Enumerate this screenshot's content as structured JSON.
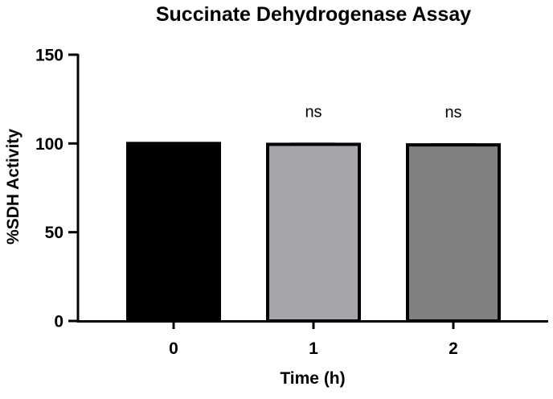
{
  "chart_data": {
    "type": "bar",
    "title": "Succinate Dehydrogenase Assay",
    "xlabel": "Time (h)",
    "ylabel": "%SDH Activity",
    "categories": [
      "0",
      "1",
      "2"
    ],
    "values": [
      100,
      99.5,
      99.2
    ],
    "errors": [
      0,
      0.5,
      0.5
    ],
    "annotations": [
      "",
      "ns",
      "ns"
    ],
    "bar_colors": [
      "#000000",
      "#a6a6aa",
      "#808080"
    ],
    "edge_color": "#000000",
    "ylim": [
      0,
      150
    ],
    "yticks": [
      0,
      50,
      100,
      150
    ],
    "grid": false,
    "legend": "none"
  }
}
